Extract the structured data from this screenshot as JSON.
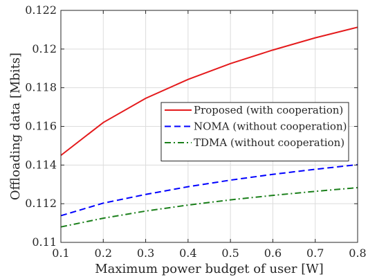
{
  "chart_data": {
    "type": "line",
    "xlabel": "Maximum power budget of user [W]",
    "ylabel": "Offloading data [Mbits]",
    "x": [
      0.1,
      0.2,
      0.3,
      0.4,
      0.5,
      0.6,
      0.7,
      0.8
    ],
    "xlim": [
      0.1,
      0.8
    ],
    "ylim": [
      0.11,
      0.122
    ],
    "x_ticks": [
      "0.1",
      "0.2",
      "0.3",
      "0.4",
      "0.5",
      "0.6",
      "0.7",
      "0.8"
    ],
    "y_ticks": [
      "0.11",
      "0.112",
      "0.114",
      "0.116",
      "0.118",
      "0.12",
      "0.122"
    ],
    "grid": true,
    "legend_position": "center-right",
    "series": [
      {
        "name": "Proposed (with cooperation)",
        "color": "#e41a1c",
        "dash": "solid",
        "values": [
          0.1145,
          0.1162,
          0.11745,
          0.11843,
          0.11925,
          0.11995,
          0.12058,
          0.12113
        ]
      },
      {
        "name": "NOMA (without cooperation)",
        "color": "#0000ff",
        "dash": "dashed",
        "values": [
          0.11138,
          0.11203,
          0.11248,
          0.11288,
          0.11322,
          0.11352,
          0.11378,
          0.11402
        ]
      },
      {
        "name": "TDMA (without cooperation)",
        "color": "#1a7f1a",
        "dash": "dashdot",
        "values": [
          0.1108,
          0.11125,
          0.11162,
          0.11193,
          0.1122,
          0.11243,
          0.11264,
          0.11283
        ]
      }
    ]
  }
}
